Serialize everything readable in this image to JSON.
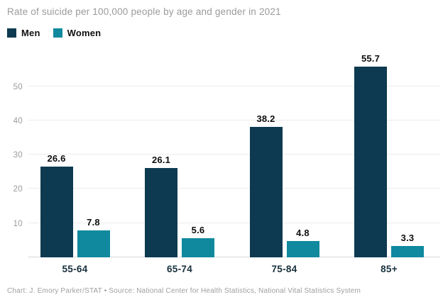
{
  "title": "Rate of suicide per 100,000 people by age and gender in 2021",
  "footer": "Chart: J. Emory Parker/STAT • Source: National Center for Health Statistics, National Vital Statistics System",
  "colors": {
    "men": "#0d3a50",
    "women": "#10899e",
    "title_text": "#9b9b9b",
    "axis_text": "#9b9b9b",
    "category_text": "#17303c",
    "value_text": "#0e0e0e",
    "gridline": "#ebebeb",
    "baseline": "#d9d9d9",
    "background": "#ffffff"
  },
  "chart_data": {
    "type": "bar",
    "title": "Rate of suicide per 100,000 people by age and gender in 2021",
    "categories": [
      "55-64",
      "65-74",
      "75-84",
      "85+"
    ],
    "series": [
      {
        "name": "Men",
        "color": "#0d3a50",
        "values": [
          26.6,
          26.1,
          38.2,
          55.7
        ]
      },
      {
        "name": "Women",
        "color": "#10899e",
        "values": [
          7.8,
          5.6,
          4.8,
          3.3
        ]
      }
    ],
    "yticks": [
      10,
      20,
      30,
      40,
      50
    ],
    "ylim": [
      0,
      60.7
    ],
    "xlabel": "",
    "ylabel": "",
    "grid": true,
    "legend_position": "top-left",
    "value_labels": true,
    "source": "Chart: J. Emory Parker/STAT • Source: National Center for Health Statistics, National Vital Statistics System"
  }
}
